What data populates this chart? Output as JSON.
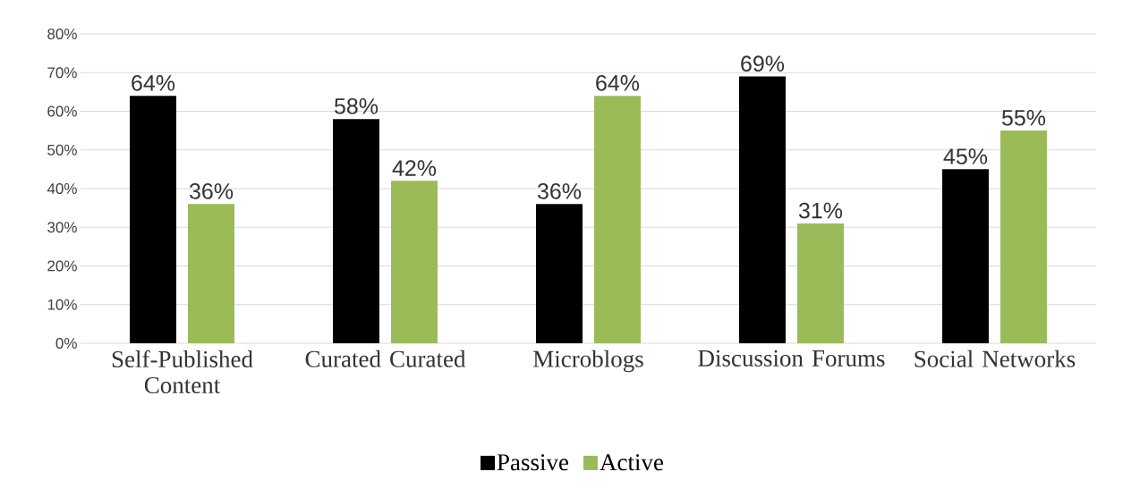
{
  "chart_data": {
    "type": "bar",
    "categories": [
      "Self-Published Content",
      "Curated Curated",
      "Microblogs",
      "Discussion Forums",
      "Social Networks"
    ],
    "series": [
      {
        "name": "Passive",
        "color": "#000000",
        "values": [
          64,
          58,
          36,
          69,
          45
        ],
        "value_labels": [
          "64%",
          "58%",
          "36%",
          "69%",
          "45%"
        ]
      },
      {
        "name": "Active",
        "color": "#9bbb59",
        "values": [
          36,
          42,
          64,
          31,
          55
        ],
        "value_labels": [
          "36%",
          "42%",
          "64%",
          "31%",
          "55%"
        ]
      }
    ],
    "ylim": [
      0,
      80
    ],
    "yticks": [
      {
        "value": 0,
        "label": "0%"
      },
      {
        "value": 10,
        "label": "10%"
      },
      {
        "value": 20,
        "label": "20%"
      },
      {
        "value": 30,
        "label": "30%"
      },
      {
        "value": 40,
        "label": "40%"
      },
      {
        "value": 50,
        "label": "50%"
      },
      {
        "value": 60,
        "label": "60%"
      },
      {
        "value": 70,
        "label": "70%"
      },
      {
        "value": 80,
        "label": "80%"
      }
    ],
    "grid": "y",
    "legend": "bottom"
  }
}
